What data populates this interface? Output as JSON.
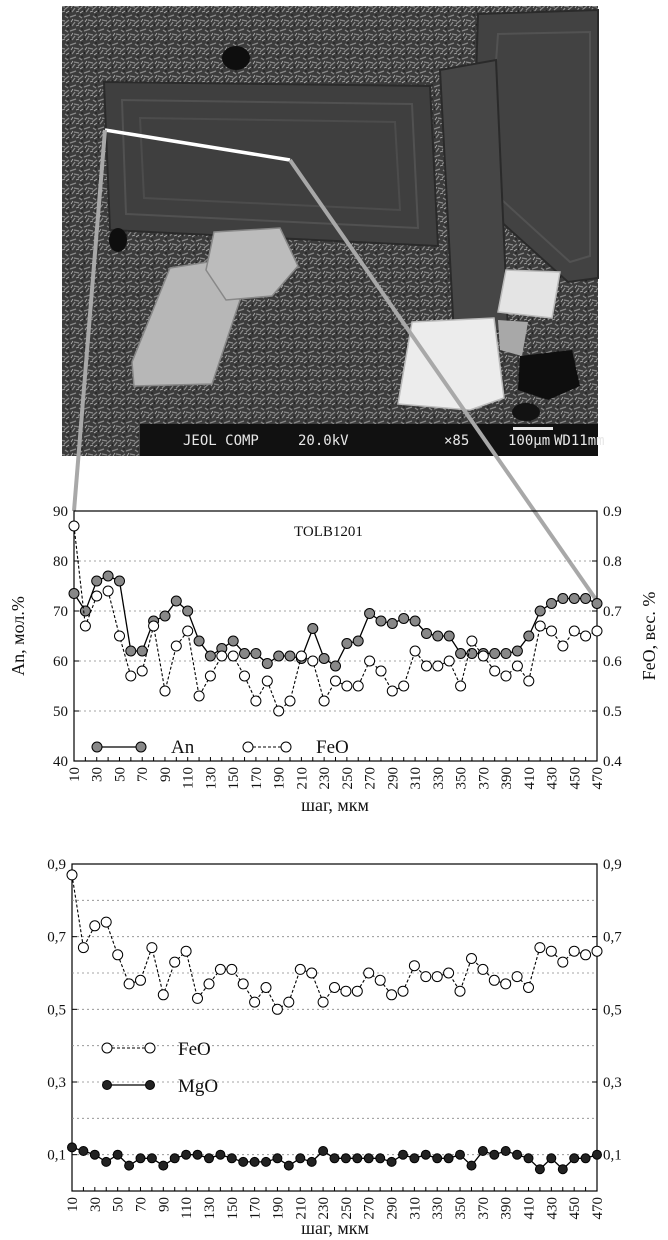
{
  "sem_image": {
    "info_bar": {
      "instrument": "JEOL COMP",
      "voltage": "20.0kV",
      "magnification": "×85",
      "scale": "100μm",
      "working_distance": "WD11mm"
    }
  },
  "chart_data": [
    {
      "type": "line",
      "title": "TOLB1201",
      "xlabel": "шаг, мкм",
      "ylabel": "An, мол.%",
      "y2label": "FeO, вес. %",
      "xlim": [
        10,
        470
      ],
      "ylim": [
        40,
        90
      ],
      "y2lim": [
        0.4,
        0.9
      ],
      "grid": "horizontal dotted",
      "legend_position": "bottom-left",
      "x_tick_labels": [
        "10",
        "30",
        "50",
        "70",
        "90",
        "110",
        "130",
        "150",
        "170",
        "190",
        "210",
        "230",
        "250",
        "270",
        "290",
        "310",
        "330",
        "350",
        "370",
        "390",
        "410",
        "430",
        "450",
        "470"
      ],
      "y_tick_labels": [
        "40",
        "50",
        "60",
        "70",
        "80",
        "90"
      ],
      "y2_tick_labels": [
        "0.4",
        "0.5",
        "0.6",
        "0.7",
        "0.8",
        "0.9"
      ],
      "x": [
        10,
        20,
        30,
        40,
        50,
        60,
        70,
        80,
        90,
        100,
        110,
        120,
        130,
        140,
        150,
        160,
        170,
        180,
        190,
        200,
        210,
        220,
        230,
        240,
        250,
        260,
        270,
        280,
        290,
        300,
        310,
        320,
        330,
        340,
        350,
        360,
        370,
        380,
        390,
        400,
        410,
        420,
        430,
        440,
        450,
        460,
        470
      ],
      "series": [
        {
          "name": "An",
          "axis": "left",
          "style": "solid line, filled gray circles",
          "values": [
            73.5,
            70,
            76,
            77,
            76,
            62,
            62,
            68,
            69,
            72,
            70,
            64,
            61,
            62.5,
            64,
            61.5,
            61.5,
            59.5,
            61,
            61,
            60.5,
            66.5,
            60.5,
            59,
            63.5,
            64,
            69.5,
            68,
            67.5,
            68.5,
            68,
            65.5,
            65,
            65,
            61.5,
            61.5,
            61.5,
            61.5,
            61.5,
            62,
            65,
            70,
            71.5,
            72.5,
            72.5,
            72.5,
            71.5
          ]
        },
        {
          "name": "FeO",
          "axis": "right",
          "style": "dashed line, open circles",
          "values": [
            0.87,
            0.67,
            0.73,
            0.74,
            0.65,
            0.57,
            0.58,
            0.67,
            0.54,
            0.63,
            0.66,
            0.53,
            0.57,
            0.61,
            0.61,
            0.57,
            0.52,
            0.56,
            0.5,
            0.52,
            0.61,
            0.6,
            0.52,
            0.56,
            0.55,
            0.55,
            0.6,
            0.58,
            0.54,
            0.55,
            0.62,
            0.59,
            0.59,
            0.6,
            0.55,
            0.64,
            0.61,
            0.58,
            0.57,
            0.59,
            0.56,
            0.67,
            0.66,
            0.63,
            0.66,
            0.65,
            0.66
          ]
        }
      ]
    },
    {
      "type": "line",
      "xlabel": "шаг, мкм",
      "xlim": [
        10,
        470
      ],
      "ylim": [
        0,
        0.9
      ],
      "grid": "horizontal dotted",
      "legend_position": "middle-left",
      "x_tick_labels": [
        "10",
        "30",
        "50",
        "70",
        "90",
        "110",
        "130",
        "150",
        "170",
        "190",
        "210",
        "230",
        "250",
        "270",
        "290",
        "310",
        "330",
        "350",
        "370",
        "390",
        "410",
        "430",
        "450",
        "470"
      ],
      "y_tick_labels": [
        "0,1",
        "0,3",
        "0,5",
        "0,7",
        "0,9"
      ],
      "y2_tick_labels": [
        "0,1",
        "0,3",
        "0,5",
        "0,7",
        "0,9"
      ],
      "x": [
        10,
        20,
        30,
        40,
        50,
        60,
        70,
        80,
        90,
        100,
        110,
        120,
        130,
        140,
        150,
        160,
        170,
        180,
        190,
        200,
        210,
        220,
        230,
        240,
        250,
        260,
        270,
        280,
        290,
        300,
        310,
        320,
        330,
        340,
        350,
        360,
        370,
        380,
        390,
        400,
        410,
        420,
        430,
        440,
        450,
        460,
        470
      ],
      "series": [
        {
          "name": "FeO",
          "style": "dashed line, open circles",
          "values": [
            0.87,
            0.67,
            0.73,
            0.74,
            0.65,
            0.57,
            0.58,
            0.67,
            0.54,
            0.63,
            0.66,
            0.53,
            0.57,
            0.61,
            0.61,
            0.57,
            0.52,
            0.56,
            0.5,
            0.52,
            0.61,
            0.6,
            0.52,
            0.56,
            0.55,
            0.55,
            0.6,
            0.58,
            0.54,
            0.55,
            0.62,
            0.59,
            0.59,
            0.6,
            0.55,
            0.64,
            0.61,
            0.58,
            0.57,
            0.59,
            0.56,
            0.67,
            0.66,
            0.63,
            0.66,
            0.65,
            0.66
          ]
        },
        {
          "name": "MgO",
          "style": "solid line, filled black circles",
          "values": [
            0.12,
            0.11,
            0.1,
            0.08,
            0.1,
            0.07,
            0.09,
            0.09,
            0.07,
            0.09,
            0.1,
            0.1,
            0.09,
            0.1,
            0.09,
            0.08,
            0.08,
            0.08,
            0.09,
            0.07,
            0.09,
            0.08,
            0.11,
            0.09,
            0.09,
            0.09,
            0.09,
            0.09,
            0.08,
            0.1,
            0.09,
            0.1,
            0.09,
            0.09,
            0.1,
            0.07,
            0.11,
            0.1,
            0.11,
            0.1,
            0.09,
            0.06,
            0.09,
            0.06,
            0.09,
            0.09,
            0.1
          ]
        }
      ]
    }
  ]
}
